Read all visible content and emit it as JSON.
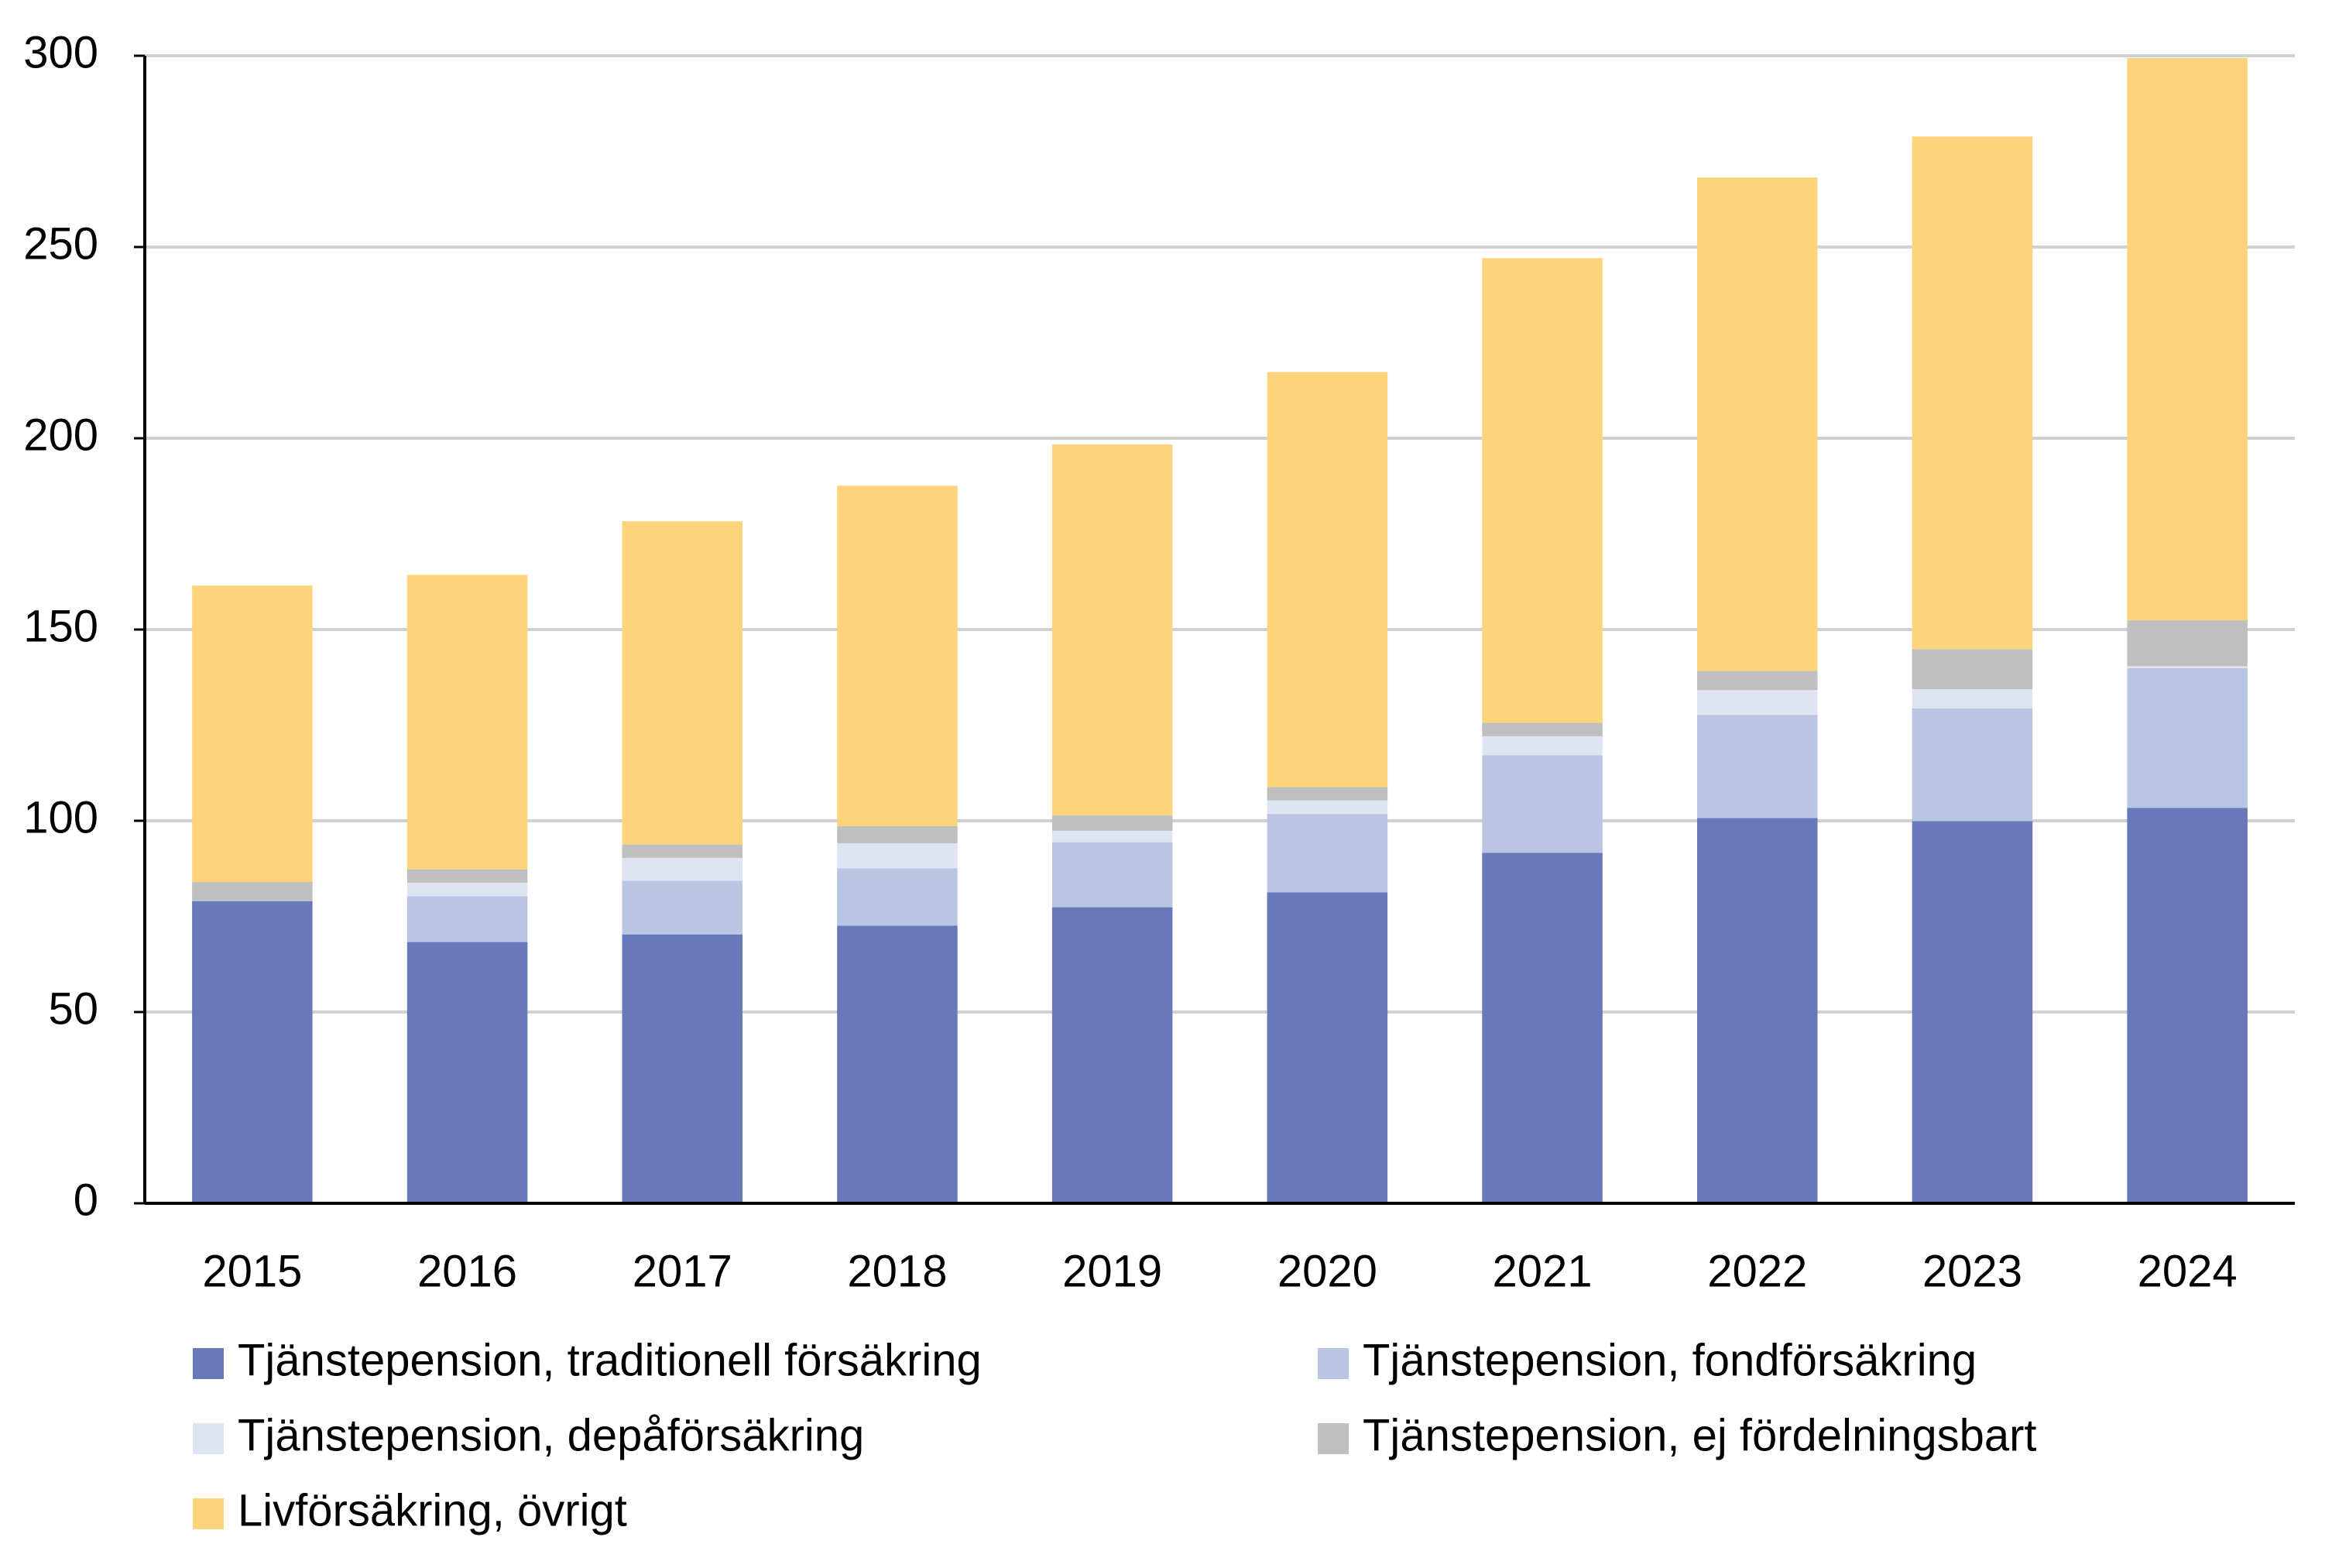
{
  "chart_data": {
    "type": "stacked_bar",
    "categories": [
      "2015",
      "2016",
      "2017",
      "2018",
      "2019",
      "2020",
      "2021",
      "2022",
      "2023",
      "2024"
    ],
    "series": [
      {
        "name": "Tjänstepension, traditionell försäkring",
        "color": "#6779b8",
        "values": [
          79,
          68.3,
          70.3,
          72.6,
          77.4,
          81.3,
          91.6,
          100.7,
          99.9,
          103.4
        ]
      },
      {
        "name": "Tjänstepension, fondförsäkring",
        "color": "#b9c5e3",
        "values": [
          0,
          12,
          14,
          15,
          17,
          20.5,
          25.5,
          27,
          29.5,
          36.5
        ]
      },
      {
        "name": "Tjänstepension, depåförsäkring",
        "color": "#dfe4f2",
        "values": [
          0,
          3.5,
          6,
          6.5,
          3,
          3.5,
          5,
          6.5,
          5,
          0.5
        ]
      },
      {
        "name": "Tjänstepension, ej fördelningsbart",
        "color": "#bfbfbf",
        "values": [
          5,
          3.5,
          3.5,
          4.5,
          4,
          3.5,
          3.5,
          5,
          10.5,
          12
        ]
      },
      {
        "name": "Livförsäkring, övrigt",
        "color": "#fdd47c",
        "values": [
          77.5,
          77,
          84.5,
          89,
          97,
          108.5,
          121.5,
          129,
          134,
          147
        ]
      }
    ],
    "ylim": [
      0,
      300
    ],
    "yticks": [
      0,
      50,
      100,
      150,
      200,
      250,
      300
    ],
    "grid": true
  }
}
